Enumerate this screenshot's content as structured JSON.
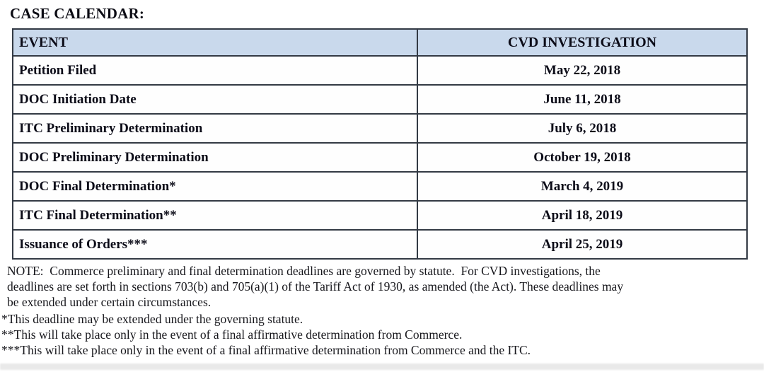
{
  "page": {
    "title": "CASE CALENDAR:"
  },
  "table": {
    "headers": {
      "event": "EVENT",
      "investigation": "CVD INVESTIGATION"
    },
    "rows": [
      {
        "event": "Petition Filed",
        "date": "May 22, 2018"
      },
      {
        "event": "DOC Initiation Date",
        "date": "June 11, 2018"
      },
      {
        "event": "ITC Preliminary Determination",
        "date": "July 6, 2018"
      },
      {
        "event": "DOC Preliminary Determination",
        "date": "October 19, 2018"
      },
      {
        "event": "DOC Final Determination*",
        "date": "March 4, 2019"
      },
      {
        "event": "ITC Final Determination**",
        "date": "April 18, 2019"
      },
      {
        "event": "Issuance of Orders***",
        "date": "April 25, 2019"
      }
    ]
  },
  "notes": {
    "note_lines": [
      "NOTE:  Commerce preliminary and final determination deadlines are governed by statute.  For CVD investigations, the",
      "deadlines are set forth in sections 703(b) and 705(a)(1) of the Tariff Act of 1930, as amended (the Act). These deadlines may",
      "be extended under certain circumstances."
    ],
    "footnotes": [
      "*This deadline may be extended under the governing statute.",
      "**This will take place only in the event of a final affirmative determination from Commerce.",
      "***This will take place only in the event of a final affirmative determination from Commerce and the ITC."
    ]
  },
  "colors": {
    "header_bg": "#c9d9ec",
    "border_outer": "#4a5560",
    "border_inner": "#333a44",
    "text": "#0c0c18"
  }
}
